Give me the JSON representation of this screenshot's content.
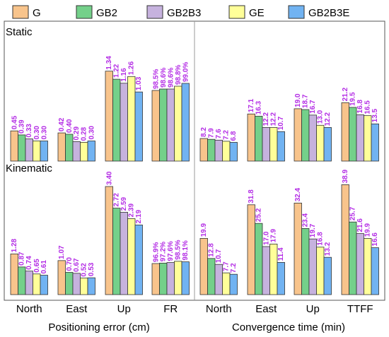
{
  "chart_data": {
    "type": "bar",
    "legend": {
      "placement": "top",
      "entries": [
        "G",
        "GB2",
        "GB2B3",
        "GE",
        "GB2B3E"
      ]
    },
    "series_colors": [
      "#F8C48C",
      "#74D08A",
      "#C6B2DE",
      "#FFFF99",
      "#71B3F2"
    ],
    "label_color": "#B32CE5",
    "panels": [
      {
        "title": "Static",
        "groups": [
          {
            "name": "North",
            "section": "Positioning error (cm)",
            "labels": [
              "0.45",
              "0.39",
              "0.33",
              "0.30",
              "0.30"
            ],
            "values": [
              0.45,
              0.39,
              0.33,
              0.3,
              0.3
            ]
          },
          {
            "name": "East",
            "section": "Positioning error (cm)",
            "labels": [
              "0.42",
              "0.40",
              "0.29",
              "0.28",
              "0.30"
            ],
            "values": [
              0.42,
              0.4,
              0.29,
              0.28,
              0.3
            ]
          },
          {
            "name": "Up",
            "section": "Positioning error (cm)",
            "labels": [
              "1.34",
              "1.22",
              "1.16",
              "1.26",
              "1.03"
            ],
            "values": [
              1.34,
              1.22,
              1.16,
              1.26,
              1.03
            ]
          },
          {
            "name": "FR",
            "section": "Positioning error (cm)",
            "labels": [
              "98.5%",
              "98.6%",
              "98.6%",
              "98.8%",
              "99.0%"
            ],
            "values": [
              98.5,
              98.6,
              98.6,
              98.8,
              99.0
            ]
          },
          {
            "name": "North",
            "section": "Convergence time (min)",
            "labels": [
              "8.2",
              "7.9",
              "7.6",
              "7.2",
              "6.8"
            ],
            "values": [
              8.2,
              7.9,
              7.6,
              7.2,
              6.8
            ]
          },
          {
            "name": "East",
            "section": "Convergence time (min)",
            "labels": [
              "17.1",
              "16.3",
              "12.2",
              "12.2",
              "10.7"
            ],
            "values": [
              17.1,
              16.3,
              12.2,
              12.2,
              10.7
            ]
          },
          {
            "name": "Up",
            "section": "Convergence time (min)",
            "labels": [
              "19.0",
              "18.7",
              "16.7",
              "13.0",
              "12.2"
            ],
            "values": [
              19.0,
              18.7,
              16.7,
              13.0,
              12.2
            ]
          },
          {
            "name": "TTFF",
            "section": "Convergence time (min)",
            "labels": [
              "21.2",
              "19.5",
              "16.8",
              "16.5",
              "13.5"
            ],
            "values": [
              21.2,
              19.5,
              16.8,
              16.5,
              13.5
            ]
          }
        ]
      },
      {
        "title": "Kinematic",
        "groups": [
          {
            "name": "North",
            "section": "Positioning error (cm)",
            "labels": [
              "1.28",
              "0.87",
              "0.74",
              "0.65",
              "0.61"
            ],
            "values": [
              1.28,
              0.87,
              0.74,
              0.65,
              0.61
            ]
          },
          {
            "name": "East",
            "section": "Positioning error (cm)",
            "labels": [
              "1.07",
              "0.70",
              "0.67",
              "0.52",
              "0.53"
            ],
            "values": [
              1.07,
              0.7,
              0.67,
              0.52,
              0.53
            ]
          },
          {
            "name": "Up",
            "section": "Positioning error (cm)",
            "labels": [
              "3.40",
              "2.72",
              "2.59",
              "2.39",
              "2.19"
            ],
            "values": [
              3.4,
              2.72,
              2.59,
              2.39,
              2.19
            ]
          },
          {
            "name": "FR",
            "section": "Positioning error (cm)",
            "labels": [
              "96.9%",
              "97.2%",
              "97.6%",
              "98.5%",
              "98.1%"
            ],
            "values": [
              96.9,
              97.2,
              97.6,
              98.5,
              98.1
            ]
          },
          {
            "name": "North",
            "section": "Convergence time (min)",
            "labels": [
              "19.9",
              "12.8",
              "10.7",
              "7.7",
              "7.2"
            ],
            "values": [
              19.9,
              12.8,
              10.7,
              7.7,
              7.2
            ]
          },
          {
            "name": "East",
            "section": "Convergence time (min)",
            "labels": [
              "31.8",
              "25.2",
              "17.0",
              "17.9",
              "11.4"
            ],
            "values": [
              31.8,
              25.2,
              17.0,
              17.9,
              11.4
            ]
          },
          {
            "name": "Up",
            "section": "Convergence time (min)",
            "labels": [
              "32.4",
              "23.4",
              "19.7",
              "16.8",
              "13.2"
            ],
            "values": [
              32.4,
              23.4,
              19.7,
              16.8,
              13.2
            ]
          },
          {
            "name": "TTFF",
            "section": "Convergence time (min)",
            "labels": [
              "38.9",
              "25.7",
              "21.6",
              "19.9",
              "16.6"
            ],
            "values": [
              38.9,
              25.7,
              21.6,
              19.9,
              16.6
            ]
          }
        ]
      }
    ],
    "x_categories": [
      "North",
      "East",
      "Up",
      "FR",
      "North",
      "East",
      "Up",
      "TTFF"
    ],
    "x_sections": [
      "Positioning error (cm)",
      "Convergence time (min)"
    ]
  }
}
